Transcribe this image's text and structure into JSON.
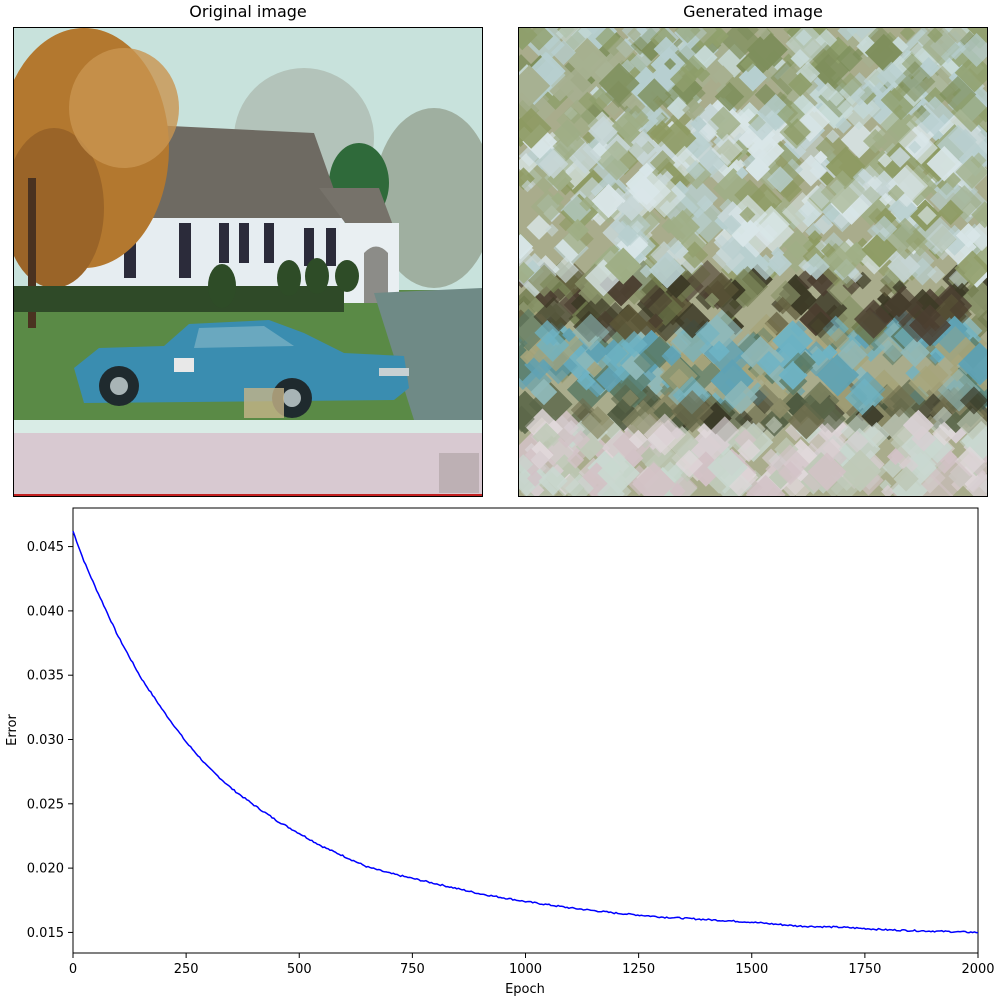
{
  "figure": {
    "original_title": "Original image",
    "generated_title": "Generated image"
  },
  "colors": {
    "line": "#0000ff",
    "sky": "#c9e3de",
    "grass": "#5e8a48",
    "car": "#3a8fb0",
    "house": "#e8eef0",
    "tree": "#b0772e"
  },
  "chart_data": {
    "type": "line",
    "title": "",
    "xlabel": "Epoch",
    "ylabel": "Error",
    "xlim": [
      0,
      2000
    ],
    "ylim": [
      0.0134,
      0.048
    ],
    "xticks": [
      "0",
      "250",
      "500",
      "750",
      "1000",
      "1250",
      "1500",
      "1750",
      "2000"
    ],
    "yticks": [
      "0.015",
      "0.020",
      "0.025",
      "0.030",
      "0.035",
      "0.040",
      "0.045"
    ],
    "grid": false,
    "series": [
      {
        "x": [
          0,
          25,
          50,
          100,
          150,
          200,
          250,
          300,
          350,
          400,
          450,
          500,
          550,
          600,
          650,
          700,
          750,
          800,
          900,
          1000,
          1100,
          1200,
          1300,
          1400,
          1500,
          1600,
          1700,
          1800,
          1900,
          2000
        ],
        "y": [
          0.0462,
          0.0438,
          0.0418,
          0.038,
          0.0348,
          0.0322,
          0.0298,
          0.0278,
          0.0262,
          0.0249,
          0.0237,
          0.0227,
          0.0217,
          0.0209,
          0.0201,
          0.0196,
          0.0192,
          0.0188,
          0.018,
          0.0174,
          0.0169,
          0.0165,
          0.0162,
          0.016,
          0.0158,
          0.0155,
          0.0154,
          0.0152,
          0.0151,
          0.015
        ]
      }
    ]
  }
}
